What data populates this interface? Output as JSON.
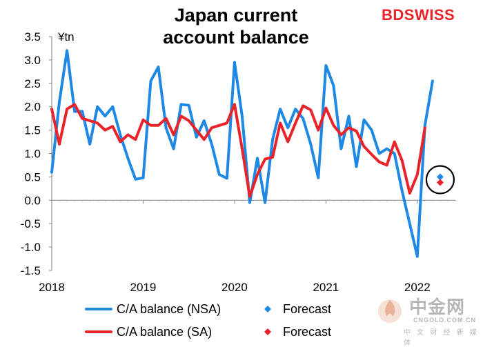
{
  "chart_data": {
    "type": "line",
    "title": "Japan current account balance",
    "title_lines": [
      "Japan current",
      "account balance"
    ],
    "unit_label": "¥tn",
    "ylim": [
      -1.5,
      3.5
    ],
    "y_ticks": [
      -1.5,
      -1.0,
      -0.5,
      0.0,
      0.5,
      1.0,
      1.5,
      2.0,
      2.5,
      3.0,
      3.5
    ],
    "y_tick_labels": [
      "-1.5",
      "-1.0",
      "-0.5",
      "0.0",
      "0.5",
      "1.0",
      "1.5",
      "2.0",
      "2.5",
      "3.0",
      "3.5"
    ],
    "x_tick_labels": [
      "2018",
      "2019",
      "2020",
      "2021",
      "2022"
    ],
    "x_range": [
      "2018-01",
      "2022-06"
    ],
    "series": [
      {
        "name": "C/A balance (NSA)",
        "color": "#1e88e5",
        "start": "2018-01",
        "values": [
          0.6,
          2.1,
          3.2,
          1.9,
          1.9,
          1.2,
          2.0,
          1.8,
          2.0,
          1.4,
          0.9,
          0.45,
          0.48,
          2.55,
          2.85,
          1.55,
          1.1,
          2.05,
          2.03,
          1.35,
          1.7,
          1.2,
          0.55,
          0.47,
          2.95,
          1.8,
          -0.05,
          0.9,
          -0.05,
          1.3,
          1.95,
          1.55,
          1.95,
          1.75,
          1.2,
          0.48,
          2.88,
          2.45,
          1.1,
          1.8,
          0.72,
          1.72,
          1.5,
          1.0,
          1.1,
          1.0,
          0.2,
          -0.5,
          -1.2,
          1.6,
          2.55
        ]
      },
      {
        "name": "C/A balance (SA)",
        "color": "#e8232a",
        "start": "2018-01",
        "values": [
          1.95,
          1.2,
          1.95,
          2.05,
          1.75,
          1.7,
          1.65,
          1.5,
          1.58,
          1.25,
          1.4,
          1.3,
          1.72,
          1.6,
          1.6,
          1.75,
          1.4,
          1.8,
          1.7,
          1.5,
          1.3,
          1.55,
          1.6,
          1.65,
          2.05,
          1.1,
          0.08,
          0.55,
          0.88,
          0.92,
          1.65,
          1.25,
          1.65,
          2.02,
          1.93,
          1.5,
          1.97,
          1.6,
          1.4,
          1.55,
          1.48,
          1.15,
          0.98,
          0.82,
          0.75,
          1.25,
          0.85,
          0.15,
          0.55,
          1.55
        ]
      }
    ],
    "forecasts": [
      {
        "name": "Forecast",
        "color": "#1e88e5",
        "date": "2022-04",
        "value": 0.5
      },
      {
        "name": "Forecast",
        "color": "#e8232a",
        "date": "2022-04",
        "value": 0.38
      }
    ],
    "grid": false,
    "legend_position": "bottom"
  },
  "brand": {
    "part1": "BD",
    "part2": "SWISS"
  },
  "watermark": {
    "cn": "中金网",
    "url": "CNGOLD.COM.CN",
    "sub": "中 文 财 经 新 媒 体"
  }
}
